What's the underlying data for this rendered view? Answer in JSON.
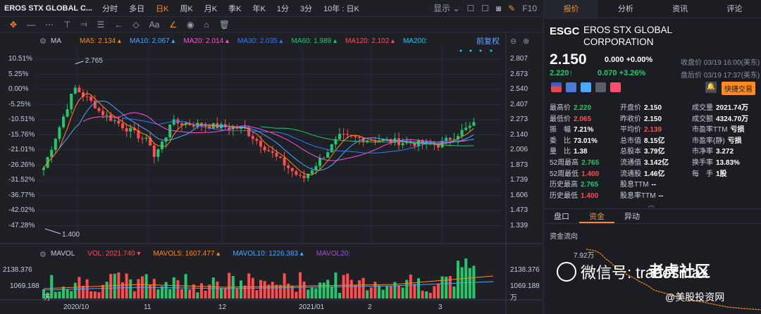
{
  "toolbar": {
    "symbol": "EROS STX GLOBAL C...",
    "periods": [
      {
        "label": "分时",
        "active": false
      },
      {
        "label": "多日",
        "active": false
      },
      {
        "label": "日K",
        "active": true
      },
      {
        "label": "周K",
        "active": false
      },
      {
        "label": "月K",
        "active": false
      },
      {
        "label": "季K",
        "active": false
      },
      {
        "label": "年K",
        "active": false
      },
      {
        "label": "1分",
        "active": false
      },
      {
        "label": "3分",
        "active": false
      }
    ],
    "range_label": "10年 : 日K",
    "display_label": "显示",
    "f10_label": "F10"
  },
  "ma_legend": {
    "type": "MA",
    "items": [
      {
        "label": "MA5:",
        "value": "2.134",
        "color": "#ff8a1e"
      },
      {
        "label": "MA10:",
        "value": "2.067",
        "color": "#4aa8ff"
      },
      {
        "label": "MA20:",
        "value": "2.014",
        "color": "#ff4fd8"
      },
      {
        "label": "MA30:",
        "value": "2.035",
        "color": "#2f7bff"
      },
      {
        "label": "MA60:",
        "value": "1.989",
        "color": "#21c96a"
      },
      {
        "label": "MA120:",
        "value": "2.102",
        "color": "#ff4d4f"
      },
      {
        "label": "MA200:",
        "value": "",
        "color": "#27c3f2"
      }
    ],
    "fuquan": "前复权"
  },
  "left_axis": [
    "10.51%",
    "5.25%",
    "0.00%",
    "-5.25%",
    "-10.51%",
    "-15.76%",
    "-21.01%",
    "-26.26%",
    "-31.52%",
    "-36.77%",
    "-42.02%",
    "-47.28%"
  ],
  "right_axis": [
    "2.807",
    "2.673",
    "2.540",
    "2.407",
    "2.273",
    "2.140",
    "2.006",
    "1.873",
    "1.739",
    "1.606",
    "1.473",
    "1.339"
  ],
  "annotations": {
    "high": "2.765",
    "low": "1.400"
  },
  "volume_legend": {
    "title": "MAVOL",
    "vol_label": "VOL:",
    "vol_value": "2021.740",
    "mavol5_label": "MAVOL5:",
    "mavol5_value": "1607.477",
    "mavol10_label": "MAVOL10:",
    "mavol10_value": "1226.383",
    "mavol20_label": "MAVOL20:",
    "axis_top": "2138.376",
    "axis_mid": "1069.188",
    "unit": "万"
  },
  "x_axis": [
    "2020/10",
    "11",
    "12",
    "2021/01",
    "2",
    "3"
  ],
  "quote": {
    "tabs": [
      {
        "label": "报价",
        "active": true
      },
      {
        "label": "分析",
        "active": false
      },
      {
        "label": "资讯",
        "active": false
      },
      {
        "label": "评论",
        "active": false
      }
    ],
    "ticker": "ESGC",
    "name": "EROS STX GLOBAL CORPORATION",
    "price": "2.150",
    "change": "0.000 +0.00%",
    "close_time": "收盘价 03/19 16:00(美东)",
    "ah_price": "2.220",
    "ah_change": "0.070 +3.26%",
    "ah_time": "盘后价 03/19 17:37(美东)",
    "trade_button": "快捷交易",
    "stats": [
      [
        {
          "k": "最高价",
          "v": "2.220",
          "c": "green"
        },
        {
          "k": "开盘价",
          "v": "2.150",
          "c": ""
        },
        {
          "k": "成交量",
          "v": "2021.74万",
          "c": ""
        }
      ],
      [
        {
          "k": "最低价",
          "v": "2.065",
          "c": "red"
        },
        {
          "k": "昨收价",
          "v": "2.150",
          "c": ""
        },
        {
          "k": "成交额",
          "v": "4324.70万",
          "c": ""
        }
      ],
      [
        {
          "k": "振　幅",
          "v": "7.21%",
          "c": ""
        },
        {
          "k": "平均价",
          "v": "2.139",
          "c": "red"
        },
        {
          "k": "市盈率TTM",
          "v": "亏损",
          "c": ""
        }
      ],
      [
        {
          "k": "委　比",
          "v": "73.01%",
          "c": ""
        },
        {
          "k": "总市值",
          "v": "8.15亿",
          "c": ""
        },
        {
          "k": "市盈率(静)",
          "v": "亏损",
          "c": ""
        }
      ],
      [
        {
          "k": "量　比",
          "v": "1.38",
          "c": ""
        },
        {
          "k": "总股本",
          "v": "3.79亿",
          "c": ""
        },
        {
          "k": "市净率",
          "v": "3.272",
          "c": ""
        }
      ],
      [
        {
          "k": "52周最高",
          "v": "2.765",
          "c": "green"
        },
        {
          "k": "流通值",
          "v": "3.142亿",
          "c": ""
        },
        {
          "k": "换手率",
          "v": "13.83%",
          "c": ""
        }
      ],
      [
        {
          "k": "52周最低",
          "v": "1.400",
          "c": "red"
        },
        {
          "k": "流通股",
          "v": "1.46亿",
          "c": ""
        },
        {
          "k": "每　手",
          "v": "1股",
          "c": ""
        }
      ],
      [
        {
          "k": "历史最高",
          "v": "2.765",
          "c": "green"
        },
        {
          "k": "股息TTM",
          "v": "--",
          "c": ""
        },
        {
          "k": "",
          "v": "",
          "c": ""
        }
      ],
      [
        {
          "k": "历史最低",
          "v": "1.400",
          "c": "red"
        },
        {
          "k": "股息率TTM",
          "v": "--",
          "c": ""
        },
        {
          "k": "",
          "v": "",
          "c": ""
        }
      ]
    ],
    "subtabs": [
      {
        "label": "盘口",
        "active": false
      },
      {
        "label": "资金",
        "active": true
      },
      {
        "label": "异动",
        "active": false
      }
    ],
    "flow_title": "资金流向",
    "flow_value": "7.92万"
  },
  "watermark": {
    "wechat": "微信号: tradesmax",
    "brand": "老虎社区",
    "sub": "@美股投资网"
  },
  "colors": {
    "up": "#21c96a",
    "down": "#ff4d4f",
    "accent": "#ff8a1e"
  }
}
